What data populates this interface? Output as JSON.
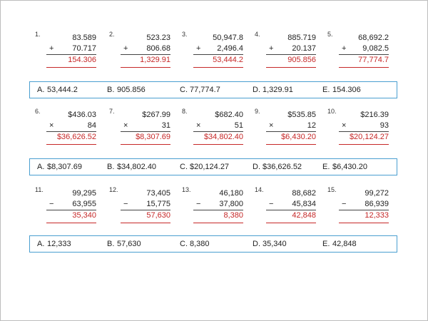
{
  "sections": [
    {
      "problems": [
        {
          "num": "1.",
          "a": "83.589",
          "op": "+",
          "b": "70.717",
          "ans": "154.306"
        },
        {
          "num": "2.",
          "a": "523.23",
          "op": "+",
          "b": "806.68",
          "ans": "1,329.91"
        },
        {
          "num": "3.",
          "a": "50,947.8",
          "op": "+",
          "b": "2,496.4",
          "ans": "53,444.2"
        },
        {
          "num": "4.",
          "a": "885.719",
          "op": "+",
          "b": "20.137",
          "ans": "905.856"
        },
        {
          "num": "5.",
          "a": "68,692.2",
          "op": "+",
          "b": "9,082.5",
          "ans": "77,774.7"
        }
      ],
      "answers": [
        {
          "letter": "A.",
          "value": "53,444.2"
        },
        {
          "letter": "B.",
          "value": "905.856"
        },
        {
          "letter": "C.",
          "value": "77,774.7"
        },
        {
          "letter": "D.",
          "value": "1,329.91"
        },
        {
          "letter": "E.",
          "value": "154.306"
        }
      ]
    },
    {
      "problems": [
        {
          "num": "6.",
          "a": "$436.03",
          "op": "×",
          "b": "84",
          "ans": "$36,626.52"
        },
        {
          "num": "7.",
          "a": "$267.99",
          "op": "×",
          "b": "31",
          "ans": "$8,307.69"
        },
        {
          "num": "8.",
          "a": "$682.40",
          "op": "×",
          "b": "51",
          "ans": "$34,802.40"
        },
        {
          "num": "9.",
          "a": "$535.85",
          "op": "×",
          "b": "12",
          "ans": "$6,430.20"
        },
        {
          "num": "10.",
          "a": "$216.39",
          "op": "×",
          "b": "93",
          "ans": "$20,124.27"
        }
      ],
      "answers": [
        {
          "letter": "A.",
          "value": "$8,307.69"
        },
        {
          "letter": "B.",
          "value": "$34,802.40"
        },
        {
          "letter": "C.",
          "value": "$20,124.27"
        },
        {
          "letter": "D.",
          "value": "$36,626.52"
        },
        {
          "letter": "E.",
          "value": "$6,430.20"
        }
      ]
    },
    {
      "problems": [
        {
          "num": "11.",
          "a": "99,295",
          "op": "−",
          "b": "63,955",
          "ans": "35,340"
        },
        {
          "num": "12.",
          "a": "73,405",
          "op": "−",
          "b": "15,775",
          "ans": "57,630"
        },
        {
          "num": "13.",
          "a": "46,180",
          "op": "−",
          "b": "37,800",
          "ans": "8,380"
        },
        {
          "num": "14.",
          "a": "88,682",
          "op": "−",
          "b": "45,834",
          "ans": "42,848"
        },
        {
          "num": "15.",
          "a": "99,272",
          "op": "−",
          "b": "86,939",
          "ans": "12,333"
        }
      ],
      "answers": [
        {
          "letter": "A.",
          "value": "12,333"
        },
        {
          "letter": "B.",
          "value": "57,630"
        },
        {
          "letter": "C.",
          "value": "8,380"
        },
        {
          "letter": "D.",
          "value": "35,340"
        },
        {
          "letter": "E.",
          "value": "42,848"
        }
      ]
    }
  ]
}
